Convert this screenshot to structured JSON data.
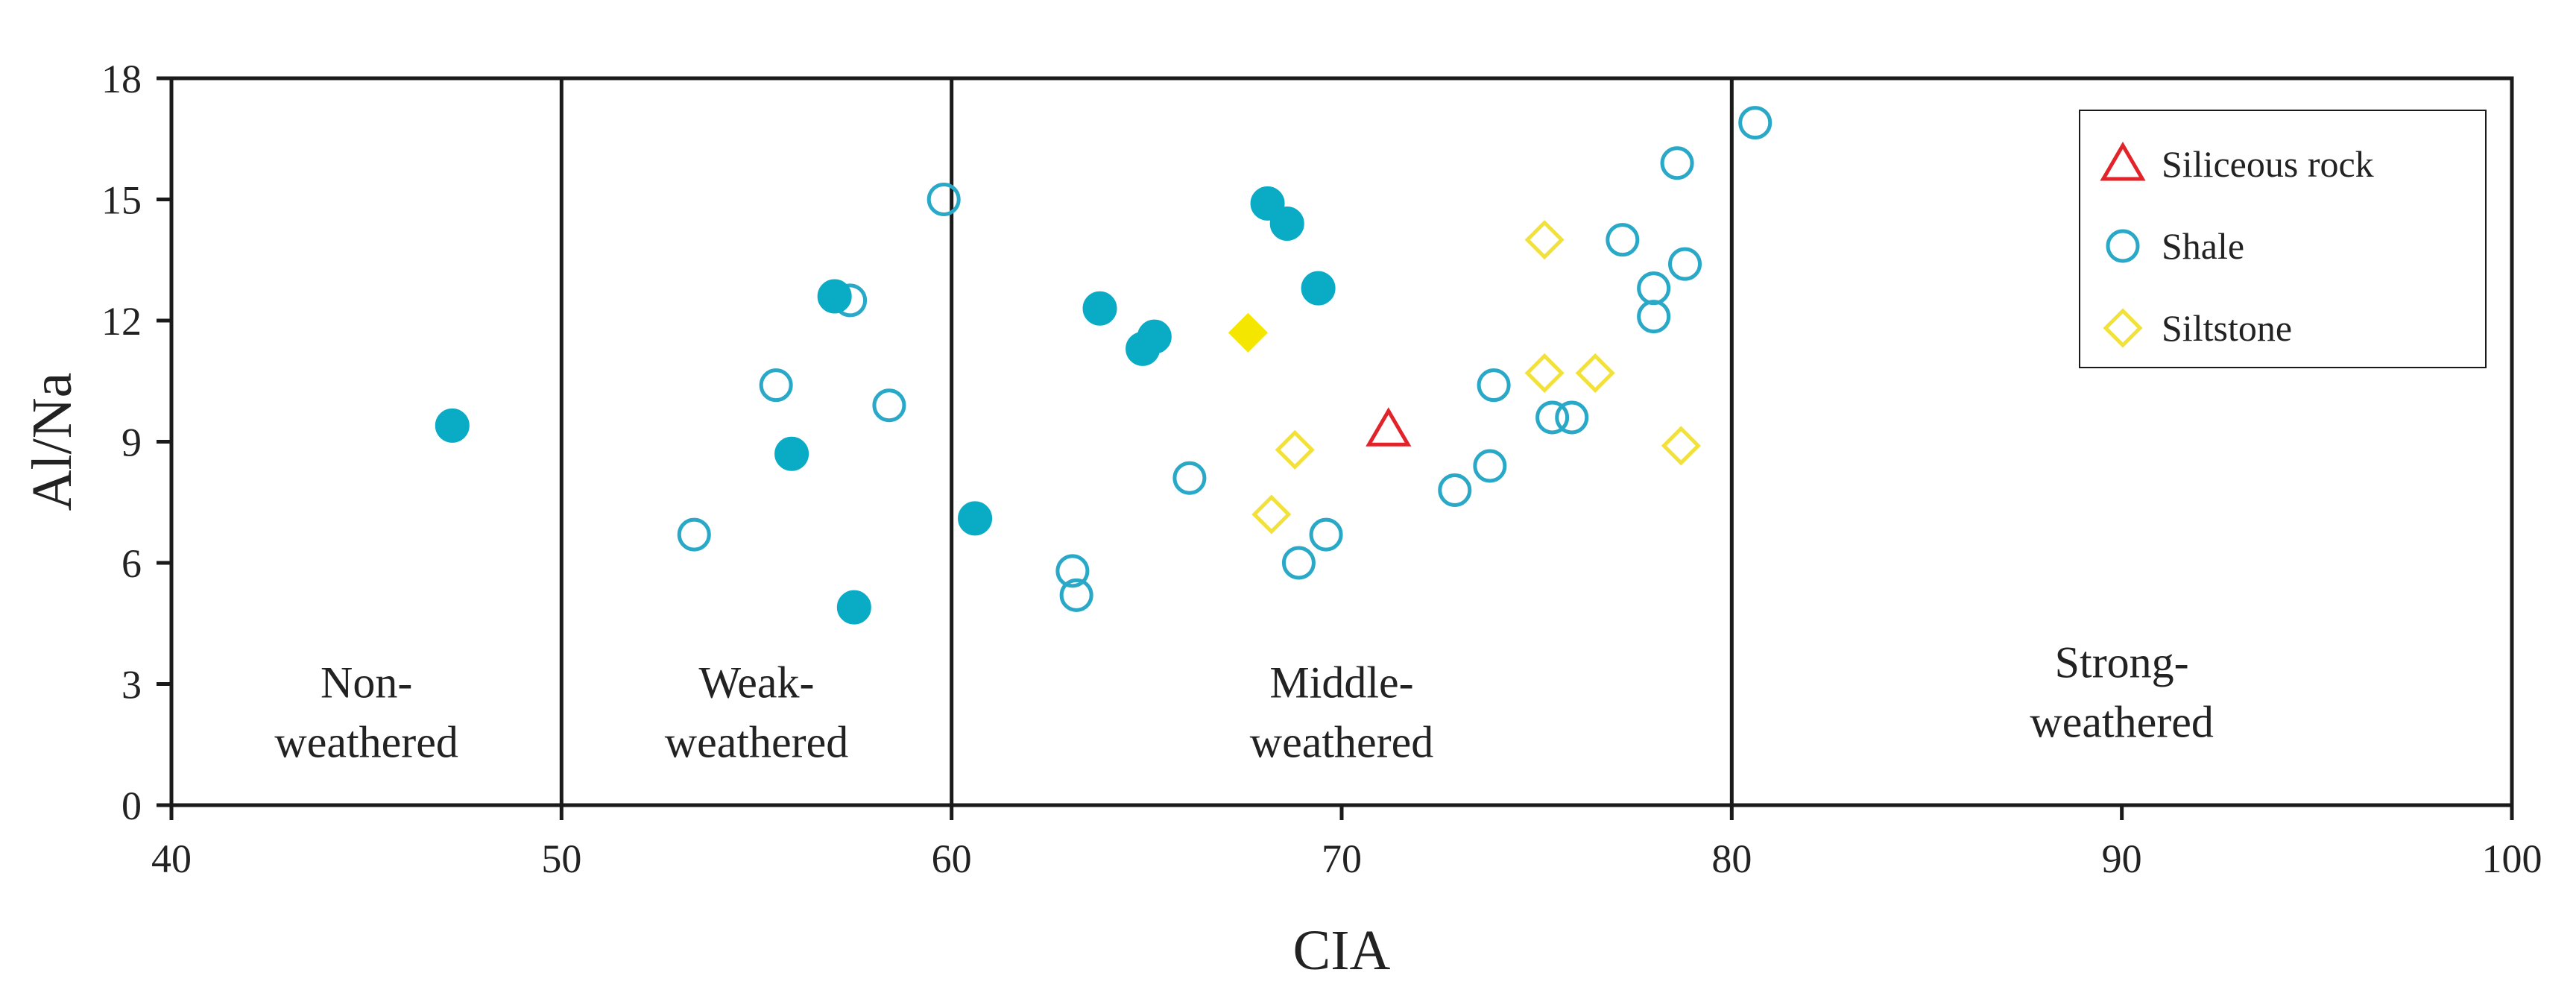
{
  "chart_data": {
    "type": "scatter",
    "xlabel": "CIA",
    "ylabel": "Al/Na",
    "xlim": [
      40,
      100
    ],
    "ylim": [
      0,
      18
    ],
    "xticks": [
      40,
      50,
      60,
      70,
      80,
      90,
      100
    ],
    "yticks": [
      0,
      3,
      6,
      9,
      12,
      15,
      18
    ],
    "zone_boundaries": [
      50,
      60,
      80
    ],
    "zones": [
      {
        "lines": [
          "Non-",
          "weathered"
        ],
        "x_center": 45,
        "y_center": 2.3
      },
      {
        "lines": [
          "Weak-",
          "weathered"
        ],
        "x_center": 55,
        "y_center": 2.3
      },
      {
        "lines": [
          "Middle-",
          "weathered"
        ],
        "x_center": 70,
        "y_center": 2.3
      },
      {
        "lines": [
          "Strong-",
          "weathered"
        ],
        "x_center": 90,
        "y_center": 2.8
      }
    ],
    "legend": {
      "position": "top-right",
      "entries": [
        "Siliceous rock",
        "Shale",
        "Siltstone"
      ]
    },
    "series": [
      {
        "name": "Siliceous rock",
        "marker": "triangle-open",
        "color": "#e2232a",
        "in_legend": true,
        "points": [
          [
            71.2,
            9.3
          ]
        ]
      },
      {
        "name": "Shale",
        "marker": "circle-open",
        "color": "#29a9c7",
        "in_legend": true,
        "points": [
          [
            53.4,
            6.7
          ],
          [
            55.5,
            10.4
          ],
          [
            57.4,
            12.5
          ],
          [
            58.4,
            9.9
          ],
          [
            59.8,
            15.0
          ],
          [
            63.1,
            5.8
          ],
          [
            63.2,
            5.2
          ],
          [
            66.1,
            8.1
          ],
          [
            68.9,
            6.0
          ],
          [
            69.6,
            6.7
          ],
          [
            72.9,
            7.8
          ],
          [
            73.8,
            8.4
          ],
          [
            73.9,
            10.4
          ],
          [
            75.4,
            9.6
          ],
          [
            75.9,
            9.6
          ],
          [
            77.2,
            14.0
          ],
          [
            78.0,
            12.8
          ],
          [
            78.0,
            12.1
          ],
          [
            78.6,
            15.9
          ],
          [
            78.8,
            13.4
          ],
          [
            80.6,
            16.9
          ]
        ]
      },
      {
        "name": "Siltstone",
        "marker": "diamond-open",
        "color": "#f1e13a",
        "in_legend": true,
        "points": [
          [
            68.2,
            7.2
          ],
          [
            68.8,
            8.8
          ],
          [
            75.2,
            14.0
          ],
          [
            75.2,
            10.7
          ],
          [
            76.5,
            10.7
          ],
          [
            78.7,
            8.9
          ]
        ]
      },
      {
        "name": "Shale (filled)",
        "marker": "circle-filled",
        "color": "#0aabc5",
        "in_legend": false,
        "points": [
          [
            47.2,
            9.4
          ],
          [
            55.9,
            8.7
          ],
          [
            57.0,
            12.6
          ],
          [
            57.5,
            4.9
          ],
          [
            60.6,
            7.1
          ],
          [
            63.8,
            12.3
          ],
          [
            64.9,
            11.3
          ],
          [
            65.2,
            11.6
          ],
          [
            68.1,
            14.9
          ],
          [
            68.6,
            14.4
          ],
          [
            69.4,
            12.8
          ]
        ]
      },
      {
        "name": "Siltstone (filled)",
        "marker": "diamond-filled",
        "color": "#f5e600",
        "in_legend": false,
        "points": [
          [
            67.6,
            11.7
          ]
        ]
      }
    ]
  }
}
